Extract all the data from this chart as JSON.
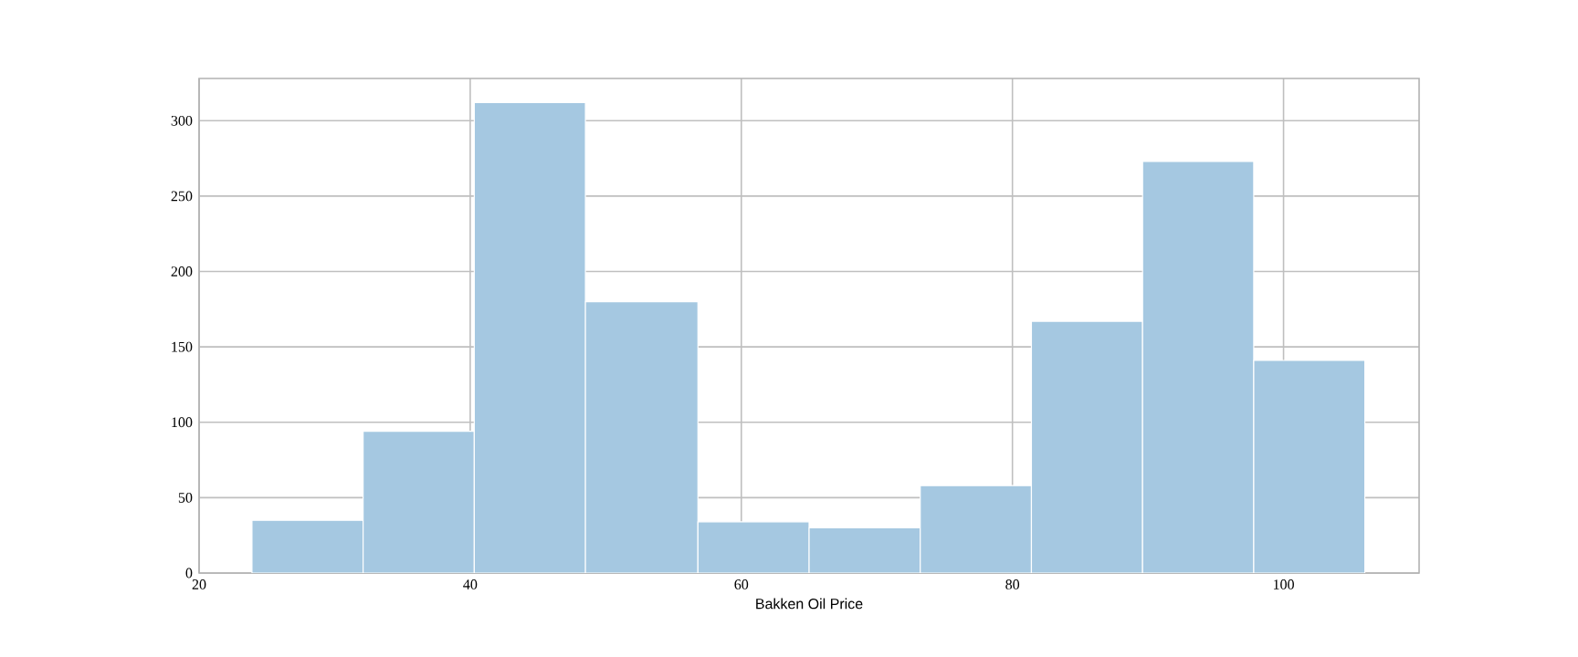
{
  "chart_data": {
    "type": "histogram",
    "xlabel": "Bakken Oil Price",
    "bins": [
      23.9,
      32.1,
      40.3,
      48.5,
      56.8,
      65.0,
      73.2,
      81.4,
      89.6,
      97.8,
      106.0
    ],
    "values": [
      35,
      94,
      312,
      180,
      34,
      30,
      58,
      167,
      273,
      141
    ],
    "color": "#a5c8e1",
    "xlim": [
      20,
      110
    ],
    "xticks": [
      20,
      40,
      60,
      80,
      100
    ],
    "ylim": [
      0,
      328
    ],
    "yticks": [
      0,
      50,
      100,
      150,
      200,
      250,
      300
    ],
    "grid": true
  }
}
